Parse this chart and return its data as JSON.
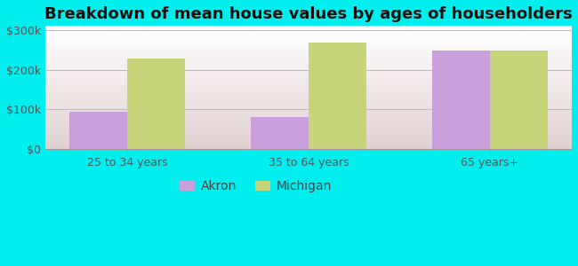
{
  "title": "Breakdown of mean house values by ages of householders",
  "categories": [
    "25 to 34 years",
    "35 to 64 years",
    "65 years+"
  ],
  "akron_values": [
    95000,
    82000,
    248000
  ],
  "michigan_values": [
    228000,
    268000,
    248000
  ],
  "akron_color": "#c9a0dc",
  "michigan_color": "#c8d47a",
  "background_color": "#00eeee",
  "plot_bg_color": "#e0f0d8",
  "ylim": [
    0,
    310000
  ],
  "yticks": [
    0,
    100000,
    200000,
    300000
  ],
  "ytick_labels": [
    "$0",
    "$100k",
    "$200k",
    "$300k"
  ],
  "legend_labels": [
    "Akron",
    "Michigan"
  ],
  "title_fontsize": 13,
  "tick_fontsize": 9,
  "legend_fontsize": 10,
  "bar_width": 0.32
}
